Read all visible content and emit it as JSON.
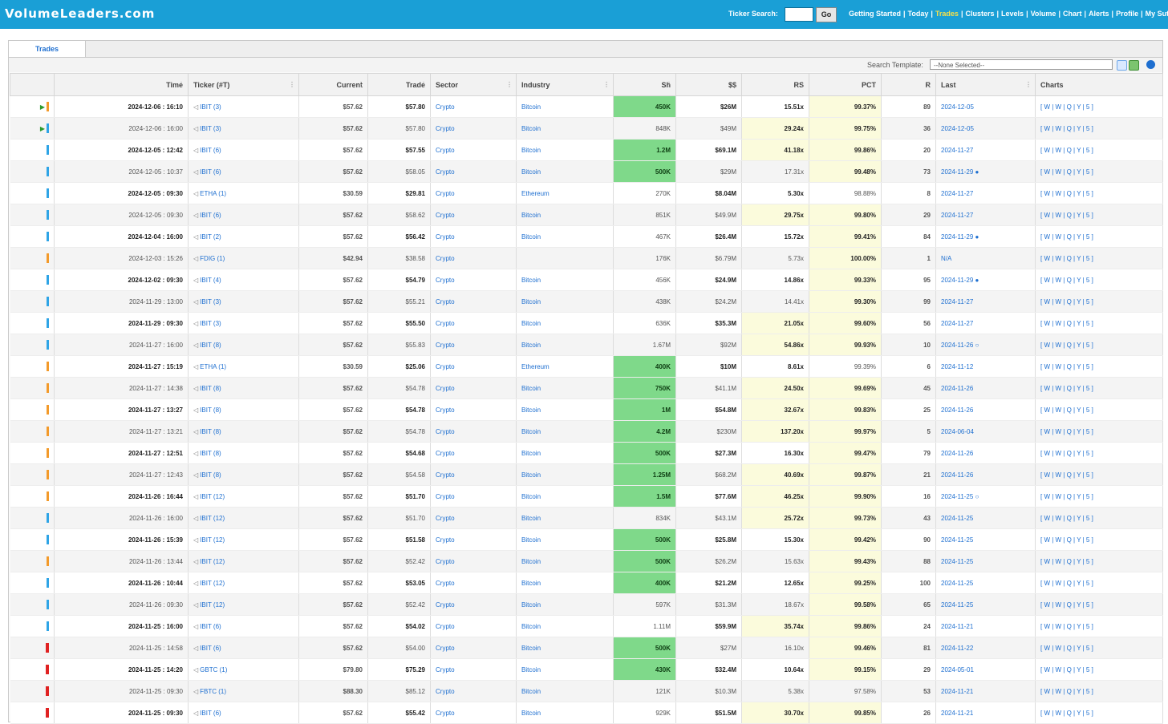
{
  "app": {
    "logo": "VolumeLeaders.com",
    "ticker_search_label": "Ticker Search:",
    "go_label": "Go",
    "nav": [
      {
        "label": "Getting Started",
        "active": false
      },
      {
        "label": "Today",
        "active": false
      },
      {
        "label": "Trades",
        "active": true
      },
      {
        "label": "Clusters",
        "active": false
      },
      {
        "label": "Levels",
        "active": false
      },
      {
        "label": "Volume",
        "active": false
      },
      {
        "label": "Chart",
        "active": false
      },
      {
        "label": "Alerts",
        "active": false
      },
      {
        "label": "Profile",
        "active": false
      },
      {
        "label": "My Sut",
        "active": false
      }
    ]
  },
  "tab": {
    "label": "Trades"
  },
  "template": {
    "label": "Search Template:",
    "selected": "--None Selected--"
  },
  "columns": [
    "Time",
    "Ticker (#T)",
    "Current",
    "Trade",
    "Sector",
    "Industry",
    "Sh",
    "$$",
    "RS",
    "PCT",
    "R",
    "Last",
    "Charts"
  ],
  "charts_links": "[ W | W | Q | Y | 5 ]",
  "colors": {
    "header_bg": "#1a9fd6",
    "green_cell": "#7fd98a",
    "yellow_cell": "#fbfbdc",
    "link": "#1e6fd0"
  },
  "rows": [
    {
      "flag": "orange",
      "play": true,
      "time": "2024-12-06 : 16:10",
      "ticker": "IBIT (3)",
      "current": "$57.62",
      "trade": "$57.80",
      "sector": "Crypto",
      "industry": "Bitcoin",
      "sh": "450K",
      "sh_hl": true,
      "usd": "$26M",
      "rs": "15.51x",
      "rs_hl": false,
      "pct": "99.37%",
      "pct_hl": true,
      "r": "89",
      "last": "2024-12-05",
      "dark": true
    },
    {
      "flag": "blue",
      "play": true,
      "time": "2024-12-06 : 16:00",
      "ticker": "IBIT (3)",
      "current": "$57.62",
      "trade": "$57.80",
      "sector": "Crypto",
      "industry": "Bitcoin",
      "sh": "848K",
      "sh_hl": false,
      "usd": "$49M",
      "rs": "29.24x",
      "rs_hl": true,
      "pct": "99.75%",
      "pct_hl": true,
      "r": "36",
      "last": "2024-12-05",
      "dark": false
    },
    {
      "flag": "blue",
      "play": false,
      "time": "2024-12-05 : 12:42",
      "ticker": "IBIT (6)",
      "current": "$57.62",
      "trade": "$57.55",
      "sector": "Crypto",
      "industry": "Bitcoin",
      "sh": "1.2M",
      "sh_hl": true,
      "usd": "$69.1M",
      "rs": "41.18x",
      "rs_hl": true,
      "pct": "99.86%",
      "pct_hl": true,
      "r": "20",
      "last": "2024-11-27",
      "dark": true
    },
    {
      "flag": "blue",
      "play": false,
      "time": "2024-12-05 : 10:37",
      "ticker": "IBIT (6)",
      "current": "$57.62",
      "trade": "$58.05",
      "sector": "Crypto",
      "industry": "Bitcoin",
      "sh": "500K",
      "sh_hl": true,
      "usd": "$29M",
      "rs": "17.31x",
      "rs_hl": false,
      "pct": "99.48%",
      "pct_hl": true,
      "r": "73",
      "last": "2024-11-29 ●",
      "dark": false
    },
    {
      "flag": "blue",
      "play": false,
      "time": "2024-12-05 : 09:30",
      "ticker": "ETHA (1)",
      "current": "$30.59",
      "trade": "$29.81",
      "sector": "Crypto",
      "industry": "Ethereum",
      "sh": "270K",
      "sh_hl": false,
      "usd": "$8.04M",
      "rs": "5.30x",
      "rs_hl": false,
      "pct": "98.88%",
      "pct_hl": false,
      "r": "8",
      "last": "2024-11-27",
      "dark": true
    },
    {
      "flag": "blue",
      "play": false,
      "time": "2024-12-05 : 09:30",
      "ticker": "IBIT (6)",
      "current": "$57.62",
      "trade": "$58.62",
      "sector": "Crypto",
      "industry": "Bitcoin",
      "sh": "851K",
      "sh_hl": false,
      "usd": "$49.9M",
      "rs": "29.75x",
      "rs_hl": true,
      "pct": "99.80%",
      "pct_hl": true,
      "r": "29",
      "last": "2024-11-27",
      "dark": false
    },
    {
      "flag": "blue",
      "play": false,
      "time": "2024-12-04 : 16:00",
      "ticker": "IBIT (2)",
      "current": "$57.62",
      "trade": "$56.42",
      "sector": "Crypto",
      "industry": "Bitcoin",
      "sh": "467K",
      "sh_hl": false,
      "usd": "$26.4M",
      "rs": "15.72x",
      "rs_hl": false,
      "pct": "99.41%",
      "pct_hl": true,
      "r": "84",
      "last": "2024-11-29 ●",
      "dark": true
    },
    {
      "flag": "orange",
      "play": false,
      "time": "2024-12-03 : 15:26",
      "ticker": "FDIG (1)",
      "current": "$42.94",
      "trade": "$38.58",
      "sector": "Crypto",
      "industry": "",
      "sh": "176K",
      "sh_hl": false,
      "usd": "$6.79M",
      "rs": "5.73x",
      "rs_hl": false,
      "pct": "100.00%",
      "pct_hl": true,
      "r": "1",
      "last": "N/A",
      "dark": false
    },
    {
      "flag": "blue",
      "play": false,
      "time": "2024-12-02 : 09:30",
      "ticker": "IBIT (4)",
      "current": "$57.62",
      "trade": "$54.79",
      "sector": "Crypto",
      "industry": "Bitcoin",
      "sh": "456K",
      "sh_hl": false,
      "usd": "$24.9M",
      "rs": "14.86x",
      "rs_hl": false,
      "pct": "99.33%",
      "pct_hl": true,
      "r": "95",
      "last": "2024-11-29 ●",
      "dark": true
    },
    {
      "flag": "blue",
      "play": false,
      "time": "2024-11-29 : 13:00",
      "ticker": "IBIT (3)",
      "current": "$57.62",
      "trade": "$55.21",
      "sector": "Crypto",
      "industry": "Bitcoin",
      "sh": "438K",
      "sh_hl": false,
      "usd": "$24.2M",
      "rs": "14.41x",
      "rs_hl": false,
      "pct": "99.30%",
      "pct_hl": true,
      "r": "99",
      "last": "2024-11-27",
      "dark": false
    },
    {
      "flag": "blue",
      "play": false,
      "time": "2024-11-29 : 09:30",
      "ticker": "IBIT (3)",
      "current": "$57.62",
      "trade": "$55.50",
      "sector": "Crypto",
      "industry": "Bitcoin",
      "sh": "636K",
      "sh_hl": false,
      "usd": "$35.3M",
      "rs": "21.05x",
      "rs_hl": true,
      "pct": "99.60%",
      "pct_hl": true,
      "r": "56",
      "last": "2024-11-27",
      "dark": true
    },
    {
      "flag": "blue",
      "play": false,
      "time": "2024-11-27 : 16:00",
      "ticker": "IBIT (8)",
      "current": "$57.62",
      "trade": "$55.83",
      "sector": "Crypto",
      "industry": "Bitcoin",
      "sh": "1.67M",
      "sh_hl": false,
      "usd": "$92M",
      "rs": "54.86x",
      "rs_hl": true,
      "pct": "99.93%",
      "pct_hl": true,
      "r": "10",
      "last": "2024-11-26 ○",
      "dark": false
    },
    {
      "flag": "orange",
      "play": false,
      "time": "2024-11-27 : 15:19",
      "ticker": "ETHA (1)",
      "current": "$30.59",
      "trade": "$25.06",
      "sector": "Crypto",
      "industry": "Ethereum",
      "sh": "400K",
      "sh_hl": true,
      "usd": "$10M",
      "rs": "8.61x",
      "rs_hl": false,
      "pct": "99.39%",
      "pct_hl": false,
      "r": "6",
      "last": "2024-11-12",
      "dark": true
    },
    {
      "flag": "orange",
      "play": false,
      "time": "2024-11-27 : 14:38",
      "ticker": "IBIT (8)",
      "current": "$57.62",
      "trade": "$54.78",
      "sector": "Crypto",
      "industry": "Bitcoin",
      "sh": "750K",
      "sh_hl": true,
      "usd": "$41.1M",
      "rs": "24.50x",
      "rs_hl": true,
      "pct": "99.69%",
      "pct_hl": true,
      "r": "45",
      "last": "2024-11-26",
      "dark": false
    },
    {
      "flag": "orange",
      "play": false,
      "time": "2024-11-27 : 13:27",
      "ticker": "IBIT (8)",
      "current": "$57.62",
      "trade": "$54.78",
      "sector": "Crypto",
      "industry": "Bitcoin",
      "sh": "1M",
      "sh_hl": true,
      "usd": "$54.8M",
      "rs": "32.67x",
      "rs_hl": true,
      "pct": "99.83%",
      "pct_hl": true,
      "r": "25",
      "last": "2024-11-26",
      "dark": true
    },
    {
      "flag": "orange",
      "play": false,
      "time": "2024-11-27 : 13:21",
      "ticker": "IBIT (8)",
      "current": "$57.62",
      "trade": "$54.78",
      "sector": "Crypto",
      "industry": "Bitcoin",
      "sh": "4.2M",
      "sh_hl": true,
      "usd": "$230M",
      "rs": "137.20x",
      "rs_hl": true,
      "pct": "99.97%",
      "pct_hl": true,
      "r": "5",
      "last": "2024-06-04",
      "dark": false
    },
    {
      "flag": "orange",
      "play": false,
      "time": "2024-11-27 : 12:51",
      "ticker": "IBIT (8)",
      "current": "$57.62",
      "trade": "$54.68",
      "sector": "Crypto",
      "industry": "Bitcoin",
      "sh": "500K",
      "sh_hl": true,
      "usd": "$27.3M",
      "rs": "16.30x",
      "rs_hl": false,
      "pct": "99.47%",
      "pct_hl": true,
      "r": "79",
      "last": "2024-11-26",
      "dark": true
    },
    {
      "flag": "orange",
      "play": false,
      "time": "2024-11-27 : 12:43",
      "ticker": "IBIT (8)",
      "current": "$57.62",
      "trade": "$54.58",
      "sector": "Crypto",
      "industry": "Bitcoin",
      "sh": "1.25M",
      "sh_hl": true,
      "usd": "$68.2M",
      "rs": "40.69x",
      "rs_hl": true,
      "pct": "99.87%",
      "pct_hl": true,
      "r": "21",
      "last": "2024-11-26",
      "dark": false
    },
    {
      "flag": "orange",
      "play": false,
      "time": "2024-11-26 : 16:44",
      "ticker": "IBIT (12)",
      "current": "$57.62",
      "trade": "$51.70",
      "sector": "Crypto",
      "industry": "Bitcoin",
      "sh": "1.5M",
      "sh_hl": true,
      "usd": "$77.6M",
      "rs": "46.25x",
      "rs_hl": true,
      "pct": "99.90%",
      "pct_hl": true,
      "r": "16",
      "last": "2024-11-25 ○",
      "dark": true
    },
    {
      "flag": "blue",
      "play": false,
      "time": "2024-11-26 : 16:00",
      "ticker": "IBIT (12)",
      "current": "$57.62",
      "trade": "$51.70",
      "sector": "Crypto",
      "industry": "Bitcoin",
      "sh": "834K",
      "sh_hl": false,
      "usd": "$43.1M",
      "rs": "25.72x",
      "rs_hl": true,
      "pct": "99.73%",
      "pct_hl": true,
      "r": "43",
      "last": "2024-11-25",
      "dark": false
    },
    {
      "flag": "blue",
      "play": false,
      "time": "2024-11-26 : 15:39",
      "ticker": "IBIT (12)",
      "current": "$57.62",
      "trade": "$51.58",
      "sector": "Crypto",
      "industry": "Bitcoin",
      "sh": "500K",
      "sh_hl": true,
      "usd": "$25.8M",
      "rs": "15.30x",
      "rs_hl": false,
      "pct": "99.42%",
      "pct_hl": true,
      "r": "90",
      "last": "2024-11-25",
      "dark": true
    },
    {
      "flag": "orange",
      "play": false,
      "time": "2024-11-26 : 13:44",
      "ticker": "IBIT (12)",
      "current": "$57.62",
      "trade": "$52.42",
      "sector": "Crypto",
      "industry": "Bitcoin",
      "sh": "500K",
      "sh_hl": true,
      "usd": "$26.2M",
      "rs": "15.63x",
      "rs_hl": false,
      "pct": "99.43%",
      "pct_hl": true,
      "r": "88",
      "last": "2024-11-25",
      "dark": false
    },
    {
      "flag": "blue",
      "play": false,
      "time": "2024-11-26 : 10:44",
      "ticker": "IBIT (12)",
      "current": "$57.62",
      "trade": "$53.05",
      "sector": "Crypto",
      "industry": "Bitcoin",
      "sh": "400K",
      "sh_hl": true,
      "usd": "$21.2M",
      "rs": "12.65x",
      "rs_hl": false,
      "pct": "99.25%",
      "pct_hl": true,
      "r": "100",
      "last": "2024-11-25",
      "dark": true
    },
    {
      "flag": "blue",
      "play": false,
      "time": "2024-11-26 : 09:30",
      "ticker": "IBIT (12)",
      "current": "$57.62",
      "trade": "$52.42",
      "sector": "Crypto",
      "industry": "Bitcoin",
      "sh": "597K",
      "sh_hl": false,
      "usd": "$31.3M",
      "rs": "18.67x",
      "rs_hl": false,
      "pct": "99.58%",
      "pct_hl": true,
      "r": "65",
      "last": "2024-11-25",
      "dark": false
    },
    {
      "flag": "blue",
      "play": false,
      "time": "2024-11-25 : 16:00",
      "ticker": "IBIT (6)",
      "current": "$57.62",
      "trade": "$54.02",
      "sector": "Crypto",
      "industry": "Bitcoin",
      "sh": "1.11M",
      "sh_hl": false,
      "usd": "$59.9M",
      "rs": "35.74x",
      "rs_hl": true,
      "pct": "99.86%",
      "pct_hl": true,
      "r": "24",
      "last": "2024-11-21",
      "dark": true
    },
    {
      "flag": "red",
      "play": false,
      "time": "2024-11-25 : 14:58",
      "ticker": "IBIT (6)",
      "current": "$57.62",
      "trade": "$54.00",
      "sector": "Crypto",
      "industry": "Bitcoin",
      "sh": "500K",
      "sh_hl": true,
      "usd": "$27M",
      "rs": "16.10x",
      "rs_hl": false,
      "pct": "99.46%",
      "pct_hl": true,
      "r": "81",
      "last": "2024-11-22",
      "dark": false
    },
    {
      "flag": "red",
      "play": false,
      "time": "2024-11-25 : 14:20",
      "ticker": "GBTC (1)",
      "current": "$79.80",
      "trade": "$75.29",
      "sector": "Crypto",
      "industry": "Bitcoin",
      "sh": "430K",
      "sh_hl": true,
      "usd": "$32.4M",
      "rs": "10.64x",
      "rs_hl": false,
      "pct": "99.15%",
      "pct_hl": true,
      "r": "29",
      "last": "2024-05-01",
      "dark": true
    },
    {
      "flag": "red",
      "play": false,
      "time": "2024-11-25 : 09:30",
      "ticker": "FBTC (1)",
      "current": "$88.30",
      "trade": "$85.12",
      "sector": "Crypto",
      "industry": "Bitcoin",
      "sh": "121K",
      "sh_hl": false,
      "usd": "$10.3M",
      "rs": "5.38x",
      "rs_hl": false,
      "pct": "97.58%",
      "pct_hl": false,
      "r": "53",
      "last": "2024-11-21",
      "dark": false
    },
    {
      "flag": "red",
      "play": false,
      "time": "2024-11-25 : 09:30",
      "ticker": "IBIT (6)",
      "current": "$57.62",
      "trade": "$55.42",
      "sector": "Crypto",
      "industry": "Bitcoin",
      "sh": "929K",
      "sh_hl": false,
      "usd": "$51.5M",
      "rs": "30.70x",
      "rs_hl": true,
      "pct": "99.85%",
      "pct_hl": true,
      "r": "26",
      "last": "2024-11-21",
      "dark": true
    }
  ]
}
